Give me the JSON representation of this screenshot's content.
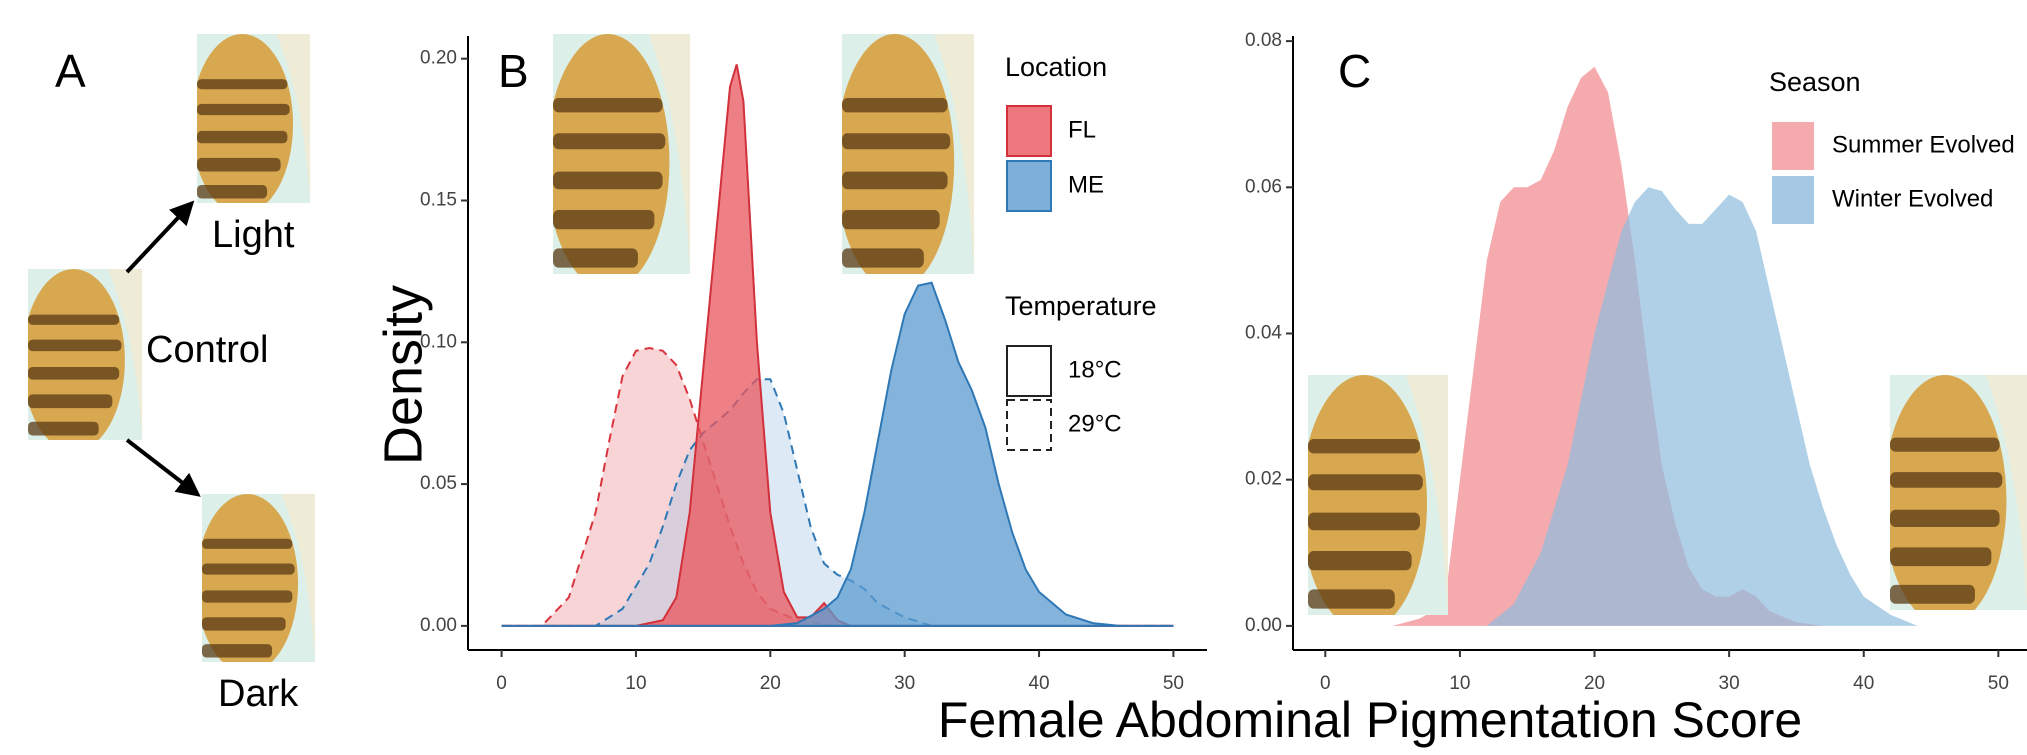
{
  "panel_a": {
    "label": "A",
    "top": "Light",
    "middle": "Control",
    "bottom": "Dark"
  },
  "shared_xlabel": "Female Abdominal Pigmentation Score",
  "chart_data": [
    {
      "type": "density",
      "panel_label": "B",
      "ylabel": "Density",
      "xlim": [
        -2.5,
        52.5
      ],
      "xticks": [
        0,
        10,
        20,
        30,
        40,
        50
      ],
      "ylim": [
        -0.0085,
        0.208
      ],
      "yticks": [
        {
          "value": 0,
          "label": "0.00"
        },
        0.05,
        {
          "value": 0.1,
          "label": "0.10"
        },
        0.15,
        {
          "value": 0.2,
          "label": "0.20"
        }
      ],
      "series": [
        {
          "color": "#f0a0a4",
          "stroke": "#d9343d",
          "dash": "dashed",
          "fill_opacity": 0.45,
          "x": [
            0,
            3,
            5,
            7,
            8,
            9,
            10,
            11,
            12,
            13,
            14,
            15,
            16,
            17,
            18,
            19,
            20,
            22,
            25,
            50
          ],
          "values": [
            0,
            0,
            0.01,
            0.04,
            0.065,
            0.088,
            0.097,
            0.098,
            0.097,
            0.092,
            0.08,
            0.065,
            0.05,
            0.035,
            0.022,
            0.012,
            0.006,
            0.002,
            0,
            0
          ]
        },
        {
          "color": "#a9c9e6",
          "stroke": "#2f78b6",
          "dash": "dashed",
          "fill_opacity": 0.4,
          "x": [
            0,
            7,
            9,
            11,
            12,
            13,
            14,
            15,
            16,
            17,
            18,
            19,
            20,
            21,
            22,
            23,
            24,
            25,
            26,
            27,
            28,
            30,
            32,
            50
          ],
          "values": [
            0,
            0,
            0.006,
            0.022,
            0.035,
            0.05,
            0.062,
            0.068,
            0.072,
            0.076,
            0.082,
            0.087,
            0.087,
            0.075,
            0.055,
            0.035,
            0.022,
            0.018,
            0.016,
            0.013,
            0.008,
            0.003,
            0,
            0
          ]
        },
        {
          "color": "#e8555c",
          "stroke": "#d2303a",
          "dash": "solid",
          "fill_opacity": 0.75,
          "x": [
            0,
            10,
            12,
            13,
            14,
            15,
            16,
            17,
            17.5,
            18,
            19,
            20,
            21,
            22,
            23,
            24,
            25,
            26,
            50
          ],
          "values": [
            0,
            0,
            0.002,
            0.01,
            0.04,
            0.09,
            0.14,
            0.19,
            0.198,
            0.185,
            0.1,
            0.04,
            0.012,
            0.003,
            0.003,
            0.008,
            0.002,
            0,
            0
          ]
        },
        {
          "color": "#5b9bd0",
          "stroke": "#2f78b6",
          "dash": "solid",
          "fill_opacity": 0.75,
          "x": [
            0,
            20,
            22,
            24,
            25,
            26,
            27,
            28,
            29,
            30,
            31,
            32,
            33,
            34,
            35,
            36,
            37,
            38,
            39,
            40,
            42,
            44,
            46,
            50
          ],
          "values": [
            0,
            0,
            0.001,
            0.006,
            0.01,
            0.02,
            0.04,
            0.065,
            0.09,
            0.11,
            0.12,
            0.121,
            0.108,
            0.093,
            0.083,
            0.07,
            0.05,
            0.033,
            0.02,
            0.012,
            0.004,
            0.001,
            0,
            0
          ]
        }
      ],
      "legends": [
        {
          "title": "Location",
          "entries": [
            {
              "label": "FL",
              "color": "#e8555c",
              "stroke": "#d2303a"
            },
            {
              "label": "ME",
              "color": "#5b9bd0",
              "stroke": "#2f78b6"
            }
          ]
        },
        {
          "title": "Temperature",
          "entries": [
            {
              "label": "18°C",
              "dash": "solid"
            },
            {
              "label": "29°C",
              "dash": "dashed"
            }
          ]
        }
      ]
    },
    {
      "type": "density",
      "panel_label": "C",
      "xlim": [
        -2.4,
        52.5
      ],
      "xticks": [
        0,
        10,
        20,
        30,
        40,
        50
      ],
      "ylim": [
        -0.0033,
        0.0807
      ],
      "yticks": [
        {
          "value": 0,
          "label": "0.00"
        },
        0.02,
        0.04,
        0.06,
        0.08
      ],
      "series": [
        {
          "color": "#f2959a",
          "fill_opacity": 0.8,
          "x": [
            5,
            7,
            8,
            9,
            10,
            11,
            12,
            13,
            14,
            15,
            16,
            17,
            18,
            19,
            20,
            21,
            22,
            23,
            24,
            25,
            26,
            27,
            28,
            29,
            30,
            31,
            32,
            33,
            35,
            37
          ],
          "values": [
            0,
            0.001,
            0.002,
            0.005,
            0.02,
            0.035,
            0.05,
            0.058,
            0.06,
            0.06,
            0.061,
            0.065,
            0.071,
            0.075,
            0.0765,
            0.073,
            0.063,
            0.05,
            0.035,
            0.022,
            0.014,
            0.008,
            0.005,
            0.004,
            0.004,
            0.005,
            0.004,
            0.002,
            0.0005,
            0
          ]
        },
        {
          "color": "#8fbcde",
          "fill_opacity": 0.7,
          "x": [
            12,
            14,
            16,
            18,
            20,
            22,
            23,
            24,
            25,
            26,
            27,
            28,
            29,
            30,
            31,
            32,
            33,
            34,
            35,
            36,
            37,
            38,
            39,
            40,
            42,
            44
          ],
          "values": [
            0,
            0.003,
            0.01,
            0.022,
            0.04,
            0.054,
            0.058,
            0.06,
            0.0595,
            0.057,
            0.055,
            0.055,
            0.057,
            0.059,
            0.058,
            0.054,
            0.046,
            0.038,
            0.03,
            0.022,
            0.016,
            0.011,
            0.007,
            0.004,
            0.0015,
            0
          ]
        }
      ],
      "legends": [
        {
          "title": "Season",
          "entries": [
            {
              "label": "Summer Evolved",
              "color": "#f2959a"
            },
            {
              "label": "Winter Evolved",
              "color": "#8fbcde"
            }
          ]
        }
      ]
    }
  ]
}
